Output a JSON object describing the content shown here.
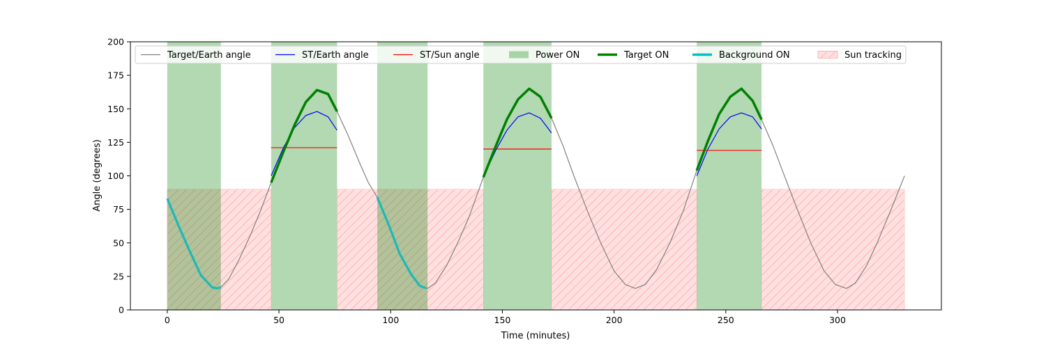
{
  "chart_data": {
    "type": "line",
    "title": "",
    "xlabel": "Time (minutes)",
    "ylabel": "Angle (degrees)",
    "xlim": [
      -16.5,
      346.5
    ],
    "ylim": [
      0,
      200
    ],
    "xticks": [
      0,
      50,
      100,
      150,
      200,
      250,
      300
    ],
    "yticks": [
      0,
      25,
      50,
      75,
      100,
      125,
      150,
      175,
      200
    ],
    "grid": false,
    "legend_position": "top",
    "legend": [
      {
        "label": "Target/Earth angle",
        "kind": "line",
        "color": "#808080",
        "width": 1
      },
      {
        "label": "ST/Earth angle",
        "kind": "line",
        "color": "#0000ff",
        "width": 1
      },
      {
        "label": "ST/Sun angle",
        "kind": "line",
        "color": "#ff0000",
        "width": 1
      },
      {
        "label": "Power ON",
        "kind": "patch",
        "color": "#008000",
        "opacity": 0.3
      },
      {
        "label": "Target ON",
        "kind": "line",
        "color": "#008000",
        "width": 3
      },
      {
        "label": "Background ON",
        "kind": "line",
        "color": "#00bfbf",
        "width": 3
      },
      {
        "label": "Sun tracking",
        "kind": "hatch",
        "color": "#ff0000",
        "opacity": 0.12
      }
    ],
    "colors": {
      "target_earth": "#808080",
      "st_earth": "#0000ff",
      "st_sun": "#ff0000",
      "power_on": "#008000",
      "target_on": "#008000",
      "background_on": "#00bfbf",
      "sun_tracking": "#ff0000"
    },
    "series": [
      {
        "name": "Target/Earth angle",
        "style": "line",
        "x": [
          0,
          5,
          10,
          15,
          20,
          23.5,
          27.5,
          32,
          37,
          42,
          46.5,
          52,
          57,
          62,
          67,
          72,
          76,
          81,
          86,
          90,
          94,
          99,
          104,
          109,
          113,
          116.5,
          120,
          125,
          130,
          135,
          141.5,
          147,
          152,
          157,
          162,
          167,
          172,
          177,
          182,
          188,
          194,
          200,
          205,
          209.5,
          214,
          219,
          225,
          231,
          237,
          242,
          247,
          252,
          257,
          262,
          266,
          271,
          276,
          282,
          288,
          294,
          299,
          304,
          308,
          313,
          318,
          324,
          330
        ],
        "y": [
          83,
          63,
          44,
          26,
          17,
          16,
          23,
          37,
          55,
          75,
          95,
          118,
          138,
          155,
          164,
          161,
          148,
          130,
          110,
          95,
          84,
          64,
          42,
          27,
          18,
          16,
          20,
          33,
          50,
          69,
          99,
          122,
          142,
          157,
          165,
          159,
          143,
          123,
          100,
          74,
          50,
          29,
          19,
          16,
          19,
          30,
          50,
          74,
          104,
          126,
          146,
          159,
          165,
          156,
          142,
          123,
          101,
          75,
          50,
          29,
          19,
          16,
          20,
          33,
          51,
          75,
          100
        ]
      },
      {
        "name": "ST/Earth angle",
        "style": "line",
        "segments": [
          {
            "x": [
              46.5,
              52,
              57,
              62,
              67,
              72,
              76
            ],
            "y": [
              100,
              121,
              136,
              145,
              148,
              144,
              134
            ]
          },
          {
            "x": [
              141.5,
              147,
              152,
              157,
              162,
              167,
              172
            ],
            "y": [
              99,
              119,
              134,
              144,
              147,
              143,
              132
            ]
          },
          {
            "x": [
              237,
              242,
              247,
              252,
              257,
              262,
              266
            ],
            "y": [
              100,
              120,
              135,
              144,
              147,
              144,
              135
            ]
          }
        ]
      },
      {
        "name": "ST/Sun angle",
        "style": "line",
        "segments": [
          {
            "x": [
              46.5,
              76
            ],
            "y": [
              121,
              121
            ]
          },
          {
            "x": [
              141.5,
              172
            ],
            "y": [
              120,
              120
            ]
          },
          {
            "x": [
              237,
              266
            ],
            "y": [
              119,
              119
            ]
          }
        ]
      },
      {
        "name": "Target ON",
        "style": "thick-line",
        "segments": [
          {
            "x": [
              46.5,
              52,
              57,
              62,
              67,
              72,
              76
            ],
            "y": [
              95,
              118,
              138,
              155,
              164,
              161,
              148
            ]
          },
          {
            "x": [
              141.5,
              147,
              152,
              157,
              162,
              167,
              172
            ],
            "y": [
              99,
              122,
              142,
              157,
              165,
              159,
              143
            ]
          },
          {
            "x": [
              237,
              242,
              247,
              252,
              257,
              262,
              266
            ],
            "y": [
              104,
              126,
              146,
              159,
              165,
              156,
              142
            ]
          }
        ]
      },
      {
        "name": "Background ON",
        "style": "thick-line",
        "segments": [
          {
            "x": [
              0,
              5,
              10,
              15,
              20,
              22,
              24
            ],
            "y": [
              83,
              63,
              44,
              26,
              17,
              16,
              17
            ]
          },
          {
            "x": [
              94,
              99,
              104,
              109,
              113,
              116
            ],
            "y": [
              84,
              64,
              42,
              27,
              18,
              16
            ]
          }
        ]
      }
    ],
    "power_on_intervals": [
      [
        0,
        24
      ],
      [
        46.5,
        76
      ],
      [
        94,
        116.5
      ],
      [
        141.5,
        172
      ],
      [
        237,
        266
      ]
    ],
    "sun_tracking_intervals": [
      [
        0,
        46.5
      ],
      [
        76,
        141.5
      ],
      [
        172,
        237
      ],
      [
        266,
        330
      ]
    ],
    "sun_tracking_level": 90
  }
}
